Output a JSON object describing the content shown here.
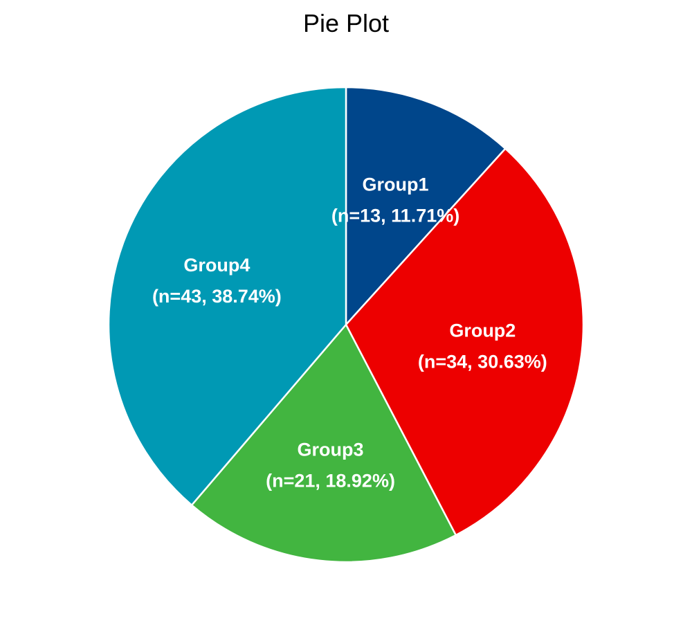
{
  "chart_data": {
    "type": "pie",
    "title": "Pie Plot",
    "start_angle_deg": 0,
    "direction": "clockwise",
    "slices": [
      {
        "name": "Group1",
        "count": 13,
        "percent": 11.71,
        "label": "(n=13, 11.71%)",
        "color": "#00468B"
      },
      {
        "name": "Group2",
        "count": 34,
        "percent": 30.63,
        "label": "(n=34, 30.63%)",
        "color": "#ED0000"
      },
      {
        "name": "Group3",
        "count": 21,
        "percent": 18.92,
        "label": "(n=21, 18.92%)",
        "color": "#42B540"
      },
      {
        "name": "Group4",
        "count": 43,
        "percent": 38.74,
        "label": "(n=43, 38.74%)",
        "color": "#0099B4"
      }
    ],
    "legend": "none"
  }
}
